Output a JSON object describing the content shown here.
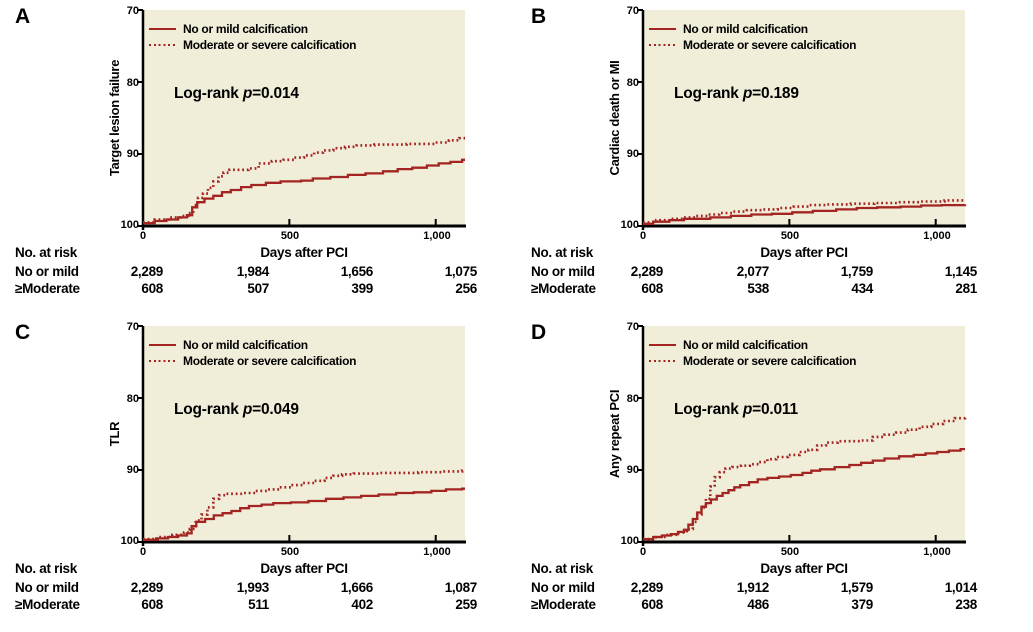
{
  "figure": {
    "legend": [
      "No or mild calcification",
      "Moderate or severe calcification"
    ],
    "x_axis_label": "Days after PCI",
    "risk_header": "No. at risk",
    "colors": {
      "curve": "#a32421",
      "plot_bg": "#f0edd9",
      "axis": "#000000",
      "background": "#ffffff"
    }
  },
  "chart_data": [
    {
      "id": "A",
      "type": "line",
      "outcome": "Target lesion failure",
      "xlabel": "Days after PCI",
      "ylabel": "Target lesion failure",
      "logrank": {
        "prefix": "Log-rank ",
        "p": "p",
        "value": "=0.014"
      },
      "x_ticks": [
        "0",
        "500",
        "1,000"
      ],
      "y_ticks": [
        "70",
        "80",
        "90",
        "100"
      ],
      "xlim": [
        0,
        1100
      ],
      "ylim": [
        70,
        100
      ],
      "y_axis_reversed": true,
      "grid": false,
      "legend_position": "top-left",
      "series": [
        {
          "name": "No or mild calcification",
          "style": "solid",
          "points": [
            [
              0,
              99.6
            ],
            [
              40,
              99.3
            ],
            [
              80,
              99.1
            ],
            [
              120,
              98.8
            ],
            [
              150,
              98.5
            ],
            [
              168,
              97.4
            ],
            [
              185,
              96.7
            ],
            [
              210,
              96.2
            ],
            [
              240,
              95.8
            ],
            [
              270,
              95.3
            ],
            [
              300,
              95.0
            ],
            [
              335,
              94.6
            ],
            [
              370,
              94.3
            ],
            [
              420,
              94.0
            ],
            [
              470,
              93.8
            ],
            [
              540,
              93.7
            ],
            [
              580,
              93.4
            ],
            [
              640,
              93.2
            ],
            [
              700,
              92.9
            ],
            [
              760,
              92.7
            ],
            [
              820,
              92.4
            ],
            [
              870,
              92.1
            ],
            [
              920,
              91.9
            ],
            [
              970,
              91.6
            ],
            [
              1010,
              91.3
            ],
            [
              1050,
              91.1
            ],
            [
              1090,
              90.8
            ]
          ]
        },
        {
          "name": "Moderate or severe calcification",
          "style": "dotted",
          "points": [
            [
              0,
              99.5
            ],
            [
              40,
              99.1
            ],
            [
              90,
              98.8
            ],
            [
              130,
              98.6
            ],
            [
              155,
              98.2
            ],
            [
              172,
              97.1
            ],
            [
              188,
              96.1
            ],
            [
              205,
              95.5
            ],
            [
              222,
              94.7
            ],
            [
              240,
              93.8
            ],
            [
              258,
              93.1
            ],
            [
              275,
              92.6
            ],
            [
              295,
              92.2
            ],
            [
              360,
              92.0
            ],
            [
              395,
              91.3
            ],
            [
              440,
              91.0
            ],
            [
              480,
              90.8
            ],
            [
              515,
              90.5
            ],
            [
              550,
              90.2
            ],
            [
              585,
              89.8
            ],
            [
              615,
              89.5
            ],
            [
              650,
              89.2
            ],
            [
              690,
              89.0
            ],
            [
              730,
              88.8
            ],
            [
              790,
              88.7
            ],
            [
              900,
              88.6
            ],
            [
              1000,
              88.4
            ],
            [
              1045,
              88.1
            ],
            [
              1080,
              87.8
            ]
          ]
        }
      ],
      "risk_table": {
        "rows": [
          [
            "No or mild",
            "2,289",
            "1,984",
            "1,656",
            "1,075"
          ],
          [
            "≥Moderate",
            "608",
            "507",
            "399",
            "256"
          ]
        ]
      }
    },
    {
      "id": "B",
      "type": "line",
      "outcome": "Cardiac death or MI",
      "xlabel": "Days after PCI",
      "ylabel": "Cardiac death or MI",
      "logrank": {
        "prefix": "Log-rank ",
        "p": "p",
        "value": "=0.189"
      },
      "x_ticks": [
        "0",
        "500",
        "1,000"
      ],
      "y_ticks": [
        "70",
        "80",
        "90",
        "100"
      ],
      "xlim": [
        0,
        1100
      ],
      "ylim": [
        70,
        100
      ],
      "y_axis_reversed": true,
      "grid": false,
      "legend_position": "top-left",
      "series": [
        {
          "name": "No or mild calcification",
          "style": "solid",
          "points": [
            [
              0,
              99.7
            ],
            [
              35,
              99.4
            ],
            [
              90,
              99.2
            ],
            [
              140,
              99.0
            ],
            [
              230,
              98.8
            ],
            [
              300,
              98.6
            ],
            [
              370,
              98.4
            ],
            [
              440,
              98.3
            ],
            [
              510,
              98.1
            ],
            [
              580,
              97.9
            ],
            [
              660,
              97.7
            ],
            [
              730,
              97.5
            ],
            [
              800,
              97.4
            ],
            [
              880,
              97.3
            ],
            [
              950,
              97.15
            ],
            [
              1020,
              97.1
            ],
            [
              1100,
              97.0
            ]
          ]
        },
        {
          "name": "Moderate or severe calcification",
          "style": "dotted",
          "points": [
            [
              0,
              99.5
            ],
            [
              45,
              99.2
            ],
            [
              95,
              99.0
            ],
            [
              140,
              98.8
            ],
            [
              180,
              98.6
            ],
            [
              220,
              98.4
            ],
            [
              260,
              98.2
            ],
            [
              305,
              98.0
            ],
            [
              355,
              97.8
            ],
            [
              410,
              97.7
            ],
            [
              460,
              97.5
            ],
            [
              515,
              97.3
            ],
            [
              565,
              97.1
            ],
            [
              630,
              97.0
            ],
            [
              710,
              96.9
            ],
            [
              790,
              96.8
            ],
            [
              870,
              96.7
            ],
            [
              950,
              96.6
            ],
            [
              1030,
              96.45
            ],
            [
              1100,
              96.4
            ]
          ]
        }
      ],
      "risk_table": {
        "rows": [
          [
            "No or mild",
            "2,289",
            "2,077",
            "1,759",
            "1,145"
          ],
          [
            "≥Moderate",
            "608",
            "538",
            "434",
            "281"
          ]
        ]
      }
    },
    {
      "id": "C",
      "type": "line",
      "outcome": "TLR",
      "xlabel": "Days after PCI",
      "ylabel": "TLR",
      "logrank": {
        "prefix": "Log-rank ",
        "p": "p",
        "value": "=0.049"
      },
      "x_ticks": [
        "0",
        "500",
        "1,000"
      ],
      "y_ticks": [
        "70",
        "80",
        "90",
        "100"
      ],
      "xlim": [
        0,
        1100
      ],
      "ylim": [
        70,
        100
      ],
      "y_axis_reversed": true,
      "grid": false,
      "legend_position": "top-left",
      "series": [
        {
          "name": "No or mild calcification",
          "style": "solid",
          "points": [
            [
              0,
              99.7
            ],
            [
              45,
              99.5
            ],
            [
              85,
              99.3
            ],
            [
              120,
              99.1
            ],
            [
              150,
              98.8
            ],
            [
              166,
              97.8
            ],
            [
              182,
              97.2
            ],
            [
              212,
              96.8
            ],
            [
              242,
              96.3
            ],
            [
              272,
              96.0
            ],
            [
              302,
              95.7
            ],
            [
              332,
              95.3
            ],
            [
              362,
              95.0
            ],
            [
              405,
              94.8
            ],
            [
              445,
              94.6
            ],
            [
              505,
              94.5
            ],
            [
              565,
              94.3
            ],
            [
              625,
              94.0
            ],
            [
              685,
              93.8
            ],
            [
              745,
              93.6
            ],
            [
              805,
              93.4
            ],
            [
              865,
              93.2
            ],
            [
              925,
              93.1
            ],
            [
              985,
              92.9
            ],
            [
              1035,
              92.7
            ],
            [
              1090,
              92.6
            ]
          ]
        },
        {
          "name": "Moderate or severe calcification",
          "style": "dotted",
          "points": [
            [
              0,
              99.6
            ],
            [
              50,
              99.3
            ],
            [
              100,
              99.0
            ],
            [
              140,
              98.7
            ],
            [
              160,
              98.2
            ],
            [
              180,
              97.0
            ],
            [
              200,
              96.2
            ],
            [
              220,
              95.2
            ],
            [
              240,
              94.0
            ],
            [
              260,
              93.5
            ],
            [
              285,
              93.3
            ],
            [
              345,
              93.2
            ],
            [
              385,
              92.9
            ],
            [
              425,
              92.7
            ],
            [
              465,
              92.4
            ],
            [
              505,
              92.1
            ],
            [
              545,
              91.8
            ],
            [
              585,
              91.5
            ],
            [
              620,
              91.1
            ],
            [
              650,
              90.8
            ],
            [
              680,
              90.6
            ],
            [
              720,
              90.5
            ],
            [
              810,
              90.4
            ],
            [
              940,
              90.3
            ],
            [
              1020,
              90.2
            ],
            [
              1090,
              90.1
            ]
          ]
        }
      ],
      "risk_table": {
        "rows": [
          [
            "No or mild",
            "2,289",
            "1,993",
            "1,666",
            "1,087"
          ],
          [
            "≥Moderate",
            "608",
            "511",
            "402",
            "259"
          ]
        ]
      }
    },
    {
      "id": "D",
      "type": "line",
      "outcome": "Any repeat PCI",
      "xlabel": "Days after PCI",
      "ylabel": "Any repeat PCI",
      "logrank": {
        "prefix": "Log-rank ",
        "p": "p",
        "value": "=0.011"
      },
      "x_ticks": [
        "0",
        "500",
        "1,000"
      ],
      "y_ticks": [
        "70",
        "80",
        "90",
        "100"
      ],
      "xlim": [
        0,
        1100
      ],
      "ylim": [
        70,
        100
      ],
      "y_axis_reversed": true,
      "grid": false,
      "legend_position": "top-left",
      "series": [
        {
          "name": "No or mild calcification",
          "style": "solid",
          "points": [
            [
              0,
              99.6
            ],
            [
              35,
              99.3
            ],
            [
              65,
              99.1
            ],
            [
              95,
              98.9
            ],
            [
              120,
              98.6
            ],
            [
              140,
              98.3
            ],
            [
              155,
              97.6
            ],
            [
              170,
              96.8
            ],
            [
              185,
              95.9
            ],
            [
              200,
              95.1
            ],
            [
              215,
              94.6
            ],
            [
              232,
              94.1
            ],
            [
              252,
              93.6
            ],
            [
              272,
              93.2
            ],
            [
              292,
              92.8
            ],
            [
              312,
              92.4
            ],
            [
              332,
              92.1
            ],
            [
              362,
              91.7
            ],
            [
              392,
              91.3
            ],
            [
              425,
              91.1
            ],
            [
              465,
              90.9
            ],
            [
              505,
              90.7
            ],
            [
              545,
              90.4
            ],
            [
              575,
              90.1
            ],
            [
              605,
              89.9
            ],
            [
              655,
              89.6
            ],
            [
              705,
              89.3
            ],
            [
              745,
              89.0
            ],
            [
              785,
              88.7
            ],
            [
              825,
              88.4
            ],
            [
              875,
              88.1
            ],
            [
              925,
              87.9
            ],
            [
              965,
              87.7
            ],
            [
              1005,
              87.5
            ],
            [
              1045,
              87.3
            ],
            [
              1085,
              87.1
            ]
          ]
        },
        {
          "name": "Moderate or severe calcification",
          "style": "dotted",
          "points": [
            [
              0,
              99.6
            ],
            [
              45,
              99.3
            ],
            [
              85,
              99.0
            ],
            [
              120,
              98.7
            ],
            [
              150,
              98.2
            ],
            [
              170,
              97.2
            ],
            [
              185,
              96.2
            ],
            [
              200,
              95.2
            ],
            [
              215,
              94.0
            ],
            [
              230,
              92.3
            ],
            [
              245,
              91.0
            ],
            [
              262,
              90.3
            ],
            [
              282,
              89.8
            ],
            [
              305,
              89.6
            ],
            [
              335,
              89.4
            ],
            [
              365,
              89.2
            ],
            [
              395,
              88.9
            ],
            [
              425,
              88.5
            ],
            [
              455,
              88.2
            ],
            [
              495,
              87.9
            ],
            [
              535,
              87.5
            ],
            [
              565,
              87.2
            ],
            [
              595,
              86.6
            ],
            [
              625,
              86.2
            ],
            [
              665,
              86.0
            ],
            [
              745,
              85.9
            ],
            [
              785,
              85.4
            ],
            [
              825,
              85.1
            ],
            [
              865,
              84.8
            ],
            [
              905,
              84.4
            ],
            [
              945,
              84.0
            ],
            [
              985,
              83.6
            ],
            [
              1025,
              83.2
            ],
            [
              1065,
              82.8
            ],
            [
              1100,
              82.4
            ]
          ]
        }
      ],
      "risk_table": {
        "rows": [
          [
            "No or mild",
            "2,289",
            "1,912",
            "1,579",
            "1,014"
          ],
          [
            "≥Moderate",
            "608",
            "486",
            "379",
            "238"
          ]
        ]
      }
    }
  ]
}
